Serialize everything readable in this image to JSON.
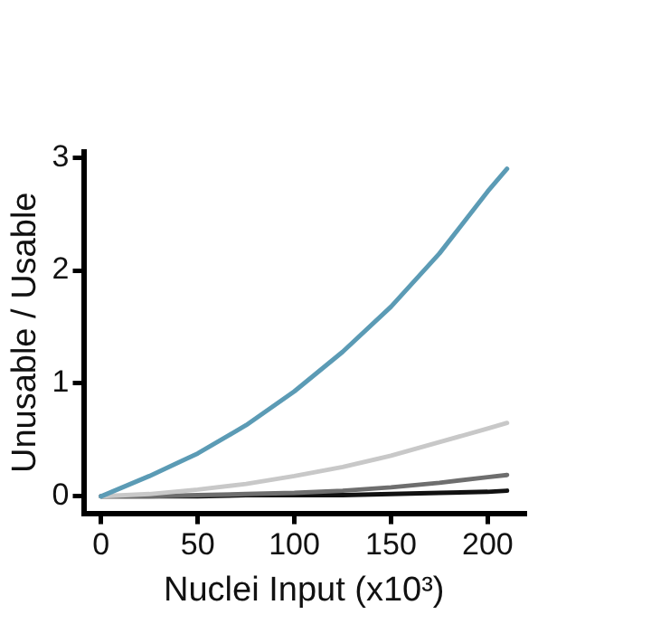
{
  "chart_data": {
    "type": "line",
    "xlabel": "Nuclei Input (x10³)",
    "ylabel": "Unusable / Usable",
    "x": [
      0,
      25,
      50,
      75,
      100,
      125,
      150,
      175,
      200,
      210
    ],
    "series": [
      {
        "color": "#5b9bb5",
        "values": [
          0,
          0.18,
          0.38,
          0.63,
          0.93,
          1.28,
          1.68,
          2.15,
          2.7,
          2.9
        ]
      },
      {
        "color": "#c8c8c8",
        "values": [
          0,
          0.02,
          0.06,
          0.11,
          0.18,
          0.26,
          0.36,
          0.48,
          0.6,
          0.65
        ]
      },
      {
        "color": "#6e6e6e",
        "values": [
          0,
          0,
          0.01,
          0.02,
          0.03,
          0.05,
          0.08,
          0.12,
          0.17,
          0.19
        ]
      },
      {
        "color": "#111111",
        "values": [
          0,
          0,
          0,
          0.01,
          0.01,
          0.01,
          0.02,
          0.03,
          0.04,
          0.05
        ]
      }
    ],
    "xlim": [
      -9,
      219
    ],
    "ylim": [
      -0.15,
      3.05
    ],
    "xticks": [
      0,
      50,
      100,
      150,
      200
    ],
    "yticks": [
      0,
      1,
      2,
      3
    ],
    "grid": false,
    "legend": false,
    "marker": "none",
    "line_style": "solid"
  }
}
